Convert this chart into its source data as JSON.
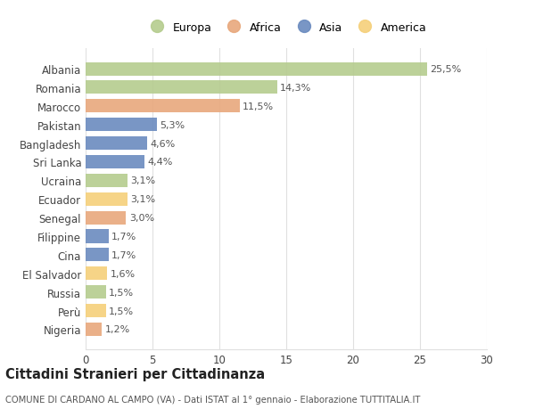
{
  "countries": [
    "Albania",
    "Romania",
    "Marocco",
    "Pakistan",
    "Bangladesh",
    "Sri Lanka",
    "Ucraina",
    "Ecuador",
    "Senegal",
    "Filippine",
    "Cina",
    "El Salvador",
    "Russia",
    "Perù",
    "Nigeria"
  ],
  "values": [
    25.5,
    14.3,
    11.5,
    5.3,
    4.6,
    4.4,
    3.1,
    3.1,
    3.0,
    1.7,
    1.7,
    1.6,
    1.5,
    1.5,
    1.2
  ],
  "labels": [
    "25,5%",
    "14,3%",
    "11,5%",
    "5,3%",
    "4,6%",
    "4,4%",
    "3,1%",
    "3,1%",
    "3,0%",
    "1,7%",
    "1,7%",
    "1,6%",
    "1,5%",
    "1,5%",
    "1,2%"
  ],
  "continents": [
    "Europa",
    "Europa",
    "Africa",
    "Asia",
    "Asia",
    "Asia",
    "Europa",
    "America",
    "Africa",
    "Asia",
    "Asia",
    "America",
    "Europa",
    "America",
    "Africa"
  ],
  "colors": {
    "Europa": "#b5cc8e",
    "Africa": "#e8a87c",
    "Asia": "#6b8bbf",
    "America": "#f5d07a"
  },
  "legend_order": [
    "Europa",
    "Africa",
    "Asia",
    "America"
  ],
  "legend_colors": [
    "#b5cc8e",
    "#e8a87c",
    "#6b8bbf",
    "#f5d07a"
  ],
  "title": "Cittadini Stranieri per Cittadinanza",
  "subtitle": "COMUNE DI CARDANO AL CAMPO (VA) - Dati ISTAT al 1° gennaio - Elaborazione TUTTITALIA.IT",
  "xlim": [
    0,
    30
  ],
  "xticks": [
    0,
    5,
    10,
    15,
    20,
    25,
    30
  ],
  "bg_color": "#ffffff",
  "grid_color": "#e0e0e0"
}
